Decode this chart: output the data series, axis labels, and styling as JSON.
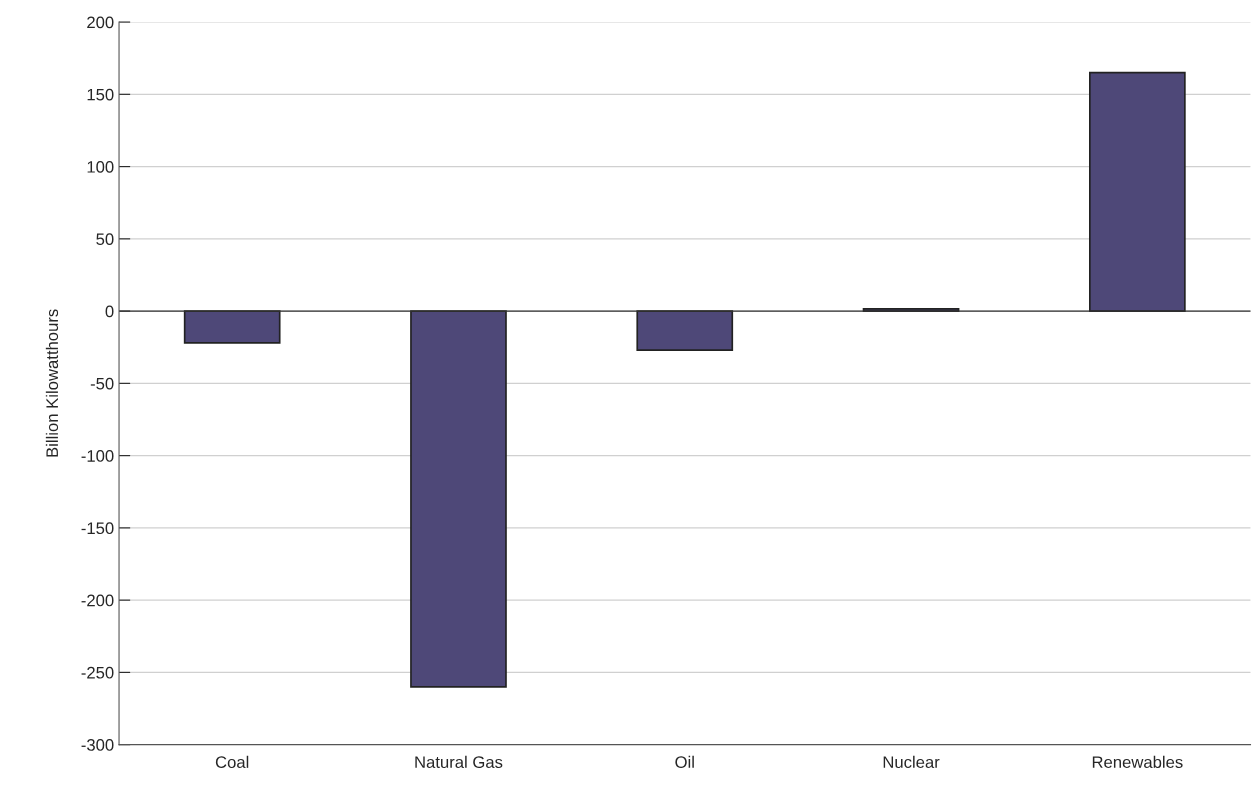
{
  "chart_data": {
    "type": "bar",
    "ylabel": "Billion Kilowatthours",
    "categories": [
      "Coal",
      "Natural Gas",
      "Oil",
      "Nuclear",
      "Renewables"
    ],
    "values": [
      -22,
      -260,
      -27,
      1.5,
      165
    ],
    "color": "#4e4878",
    "ylim": [
      -300,
      200
    ],
    "yticks": [
      -300,
      -250,
      -200,
      -150,
      -100,
      -50,
      0,
      50,
      100,
      150,
      200
    ],
    "ref_lines": [
      {
        "axis": "y",
        "value": 0,
        "color": "#333333"
      }
    ],
    "grid": "y"
  }
}
